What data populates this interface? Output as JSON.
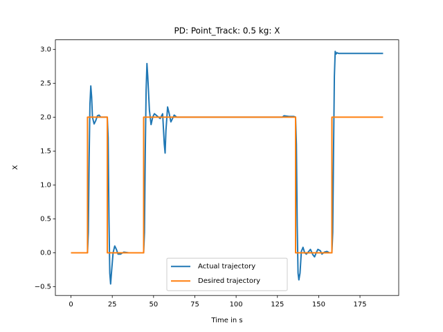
{
  "chart_data": {
    "type": "line",
    "title": "PD: Point_Track: 0.5 kg: X",
    "xlabel": "Time in s",
    "ylabel": "X",
    "xlim": [
      -9.45,
      198.45
    ],
    "ylim": [
      -0.63,
      3.14
    ],
    "xticks": [
      0,
      25,
      50,
      75,
      100,
      125,
      150,
      175
    ],
    "yticks": [
      {
        "value": -0.5,
        "label": "−0.5"
      },
      {
        "value": 0,
        "label": "0.0"
      },
      0.5,
      {
        "value": 1,
        "label": "1.0"
      },
      1.5,
      {
        "value": 2,
        "label": "2.0"
      },
      2.5,
      {
        "value": 3,
        "label": "3.0"
      }
    ],
    "grid": false,
    "legend": "lower center",
    "series": [
      {
        "name": "Actual trajectory",
        "color": "#1f77b4",
        "x": [
          0,
          10,
          10.5,
          11,
          11.5,
          12,
          12.5,
          13,
          14,
          15,
          16,
          17,
          18,
          20,
          22,
          22.5,
          23,
          23.5,
          24,
          24.5,
          25.5,
          26.5,
          27.5,
          28.5,
          30,
          32,
          35,
          44,
          44.5,
          45,
          45.5,
          46,
          46.5,
          47.5,
          48.5,
          49.5,
          50.5,
          52,
          54,
          55.5,
          56.5,
          57,
          57.5,
          58.5,
          59.5,
          60.5,
          61.5,
          62.5,
          64,
          128,
          129,
          132,
          135,
          136,
          136.5,
          137,
          137.5,
          138,
          138.7,
          139.5,
          140.5,
          141.5,
          142.5,
          144,
          145,
          146.5,
          147.5,
          148.5,
          149.5,
          151,
          152,
          153.5,
          155,
          156.5,
          158,
          158.5,
          159,
          159.5,
          160,
          160.5,
          161,
          162,
          189
        ],
        "values": [
          0,
          0,
          0.3,
          1.4,
          2.2,
          2.46,
          2.3,
          2.0,
          1.9,
          1.95,
          2.02,
          2.03,
          2.0,
          2.0,
          2.0,
          1.7,
          0.5,
          -0.3,
          -0.46,
          -0.3,
          0.0,
          0.1,
          0.05,
          -0.02,
          -0.02,
          0.01,
          0,
          0,
          0.3,
          1.5,
          2.4,
          2.79,
          2.6,
          2.1,
          1.89,
          2.0,
          2.05,
          2.02,
          1.98,
          2.05,
          1.6,
          1.47,
          1.8,
          2.15,
          2.05,
          1.93,
          1.98,
          2.03,
          2.0,
          2.0,
          2.02,
          2.01,
          2.01,
          2.0,
          1.6,
          0.4,
          -0.3,
          -0.4,
          -0.3,
          0.02,
          0.08,
          0.0,
          -0.02,
          0.02,
          0.05,
          -0.03,
          -0.06,
          0.0,
          0.05,
          0.03,
          -0.02,
          0.01,
          0.02,
          0,
          0,
          0.3,
          1.5,
          2.6,
          2.97,
          2.93,
          2.95,
          2.94,
          2.94
        ]
      },
      {
        "name": "Desired trajectory",
        "color": "#ff7f0e",
        "x": [
          0,
          10,
          10,
          22,
          22,
          44,
          44,
          136,
          136,
          158,
          158,
          189
        ],
        "values": [
          0,
          0,
          2,
          2,
          0,
          0,
          2,
          2,
          0,
          0,
          2,
          2
        ]
      }
    ]
  }
}
